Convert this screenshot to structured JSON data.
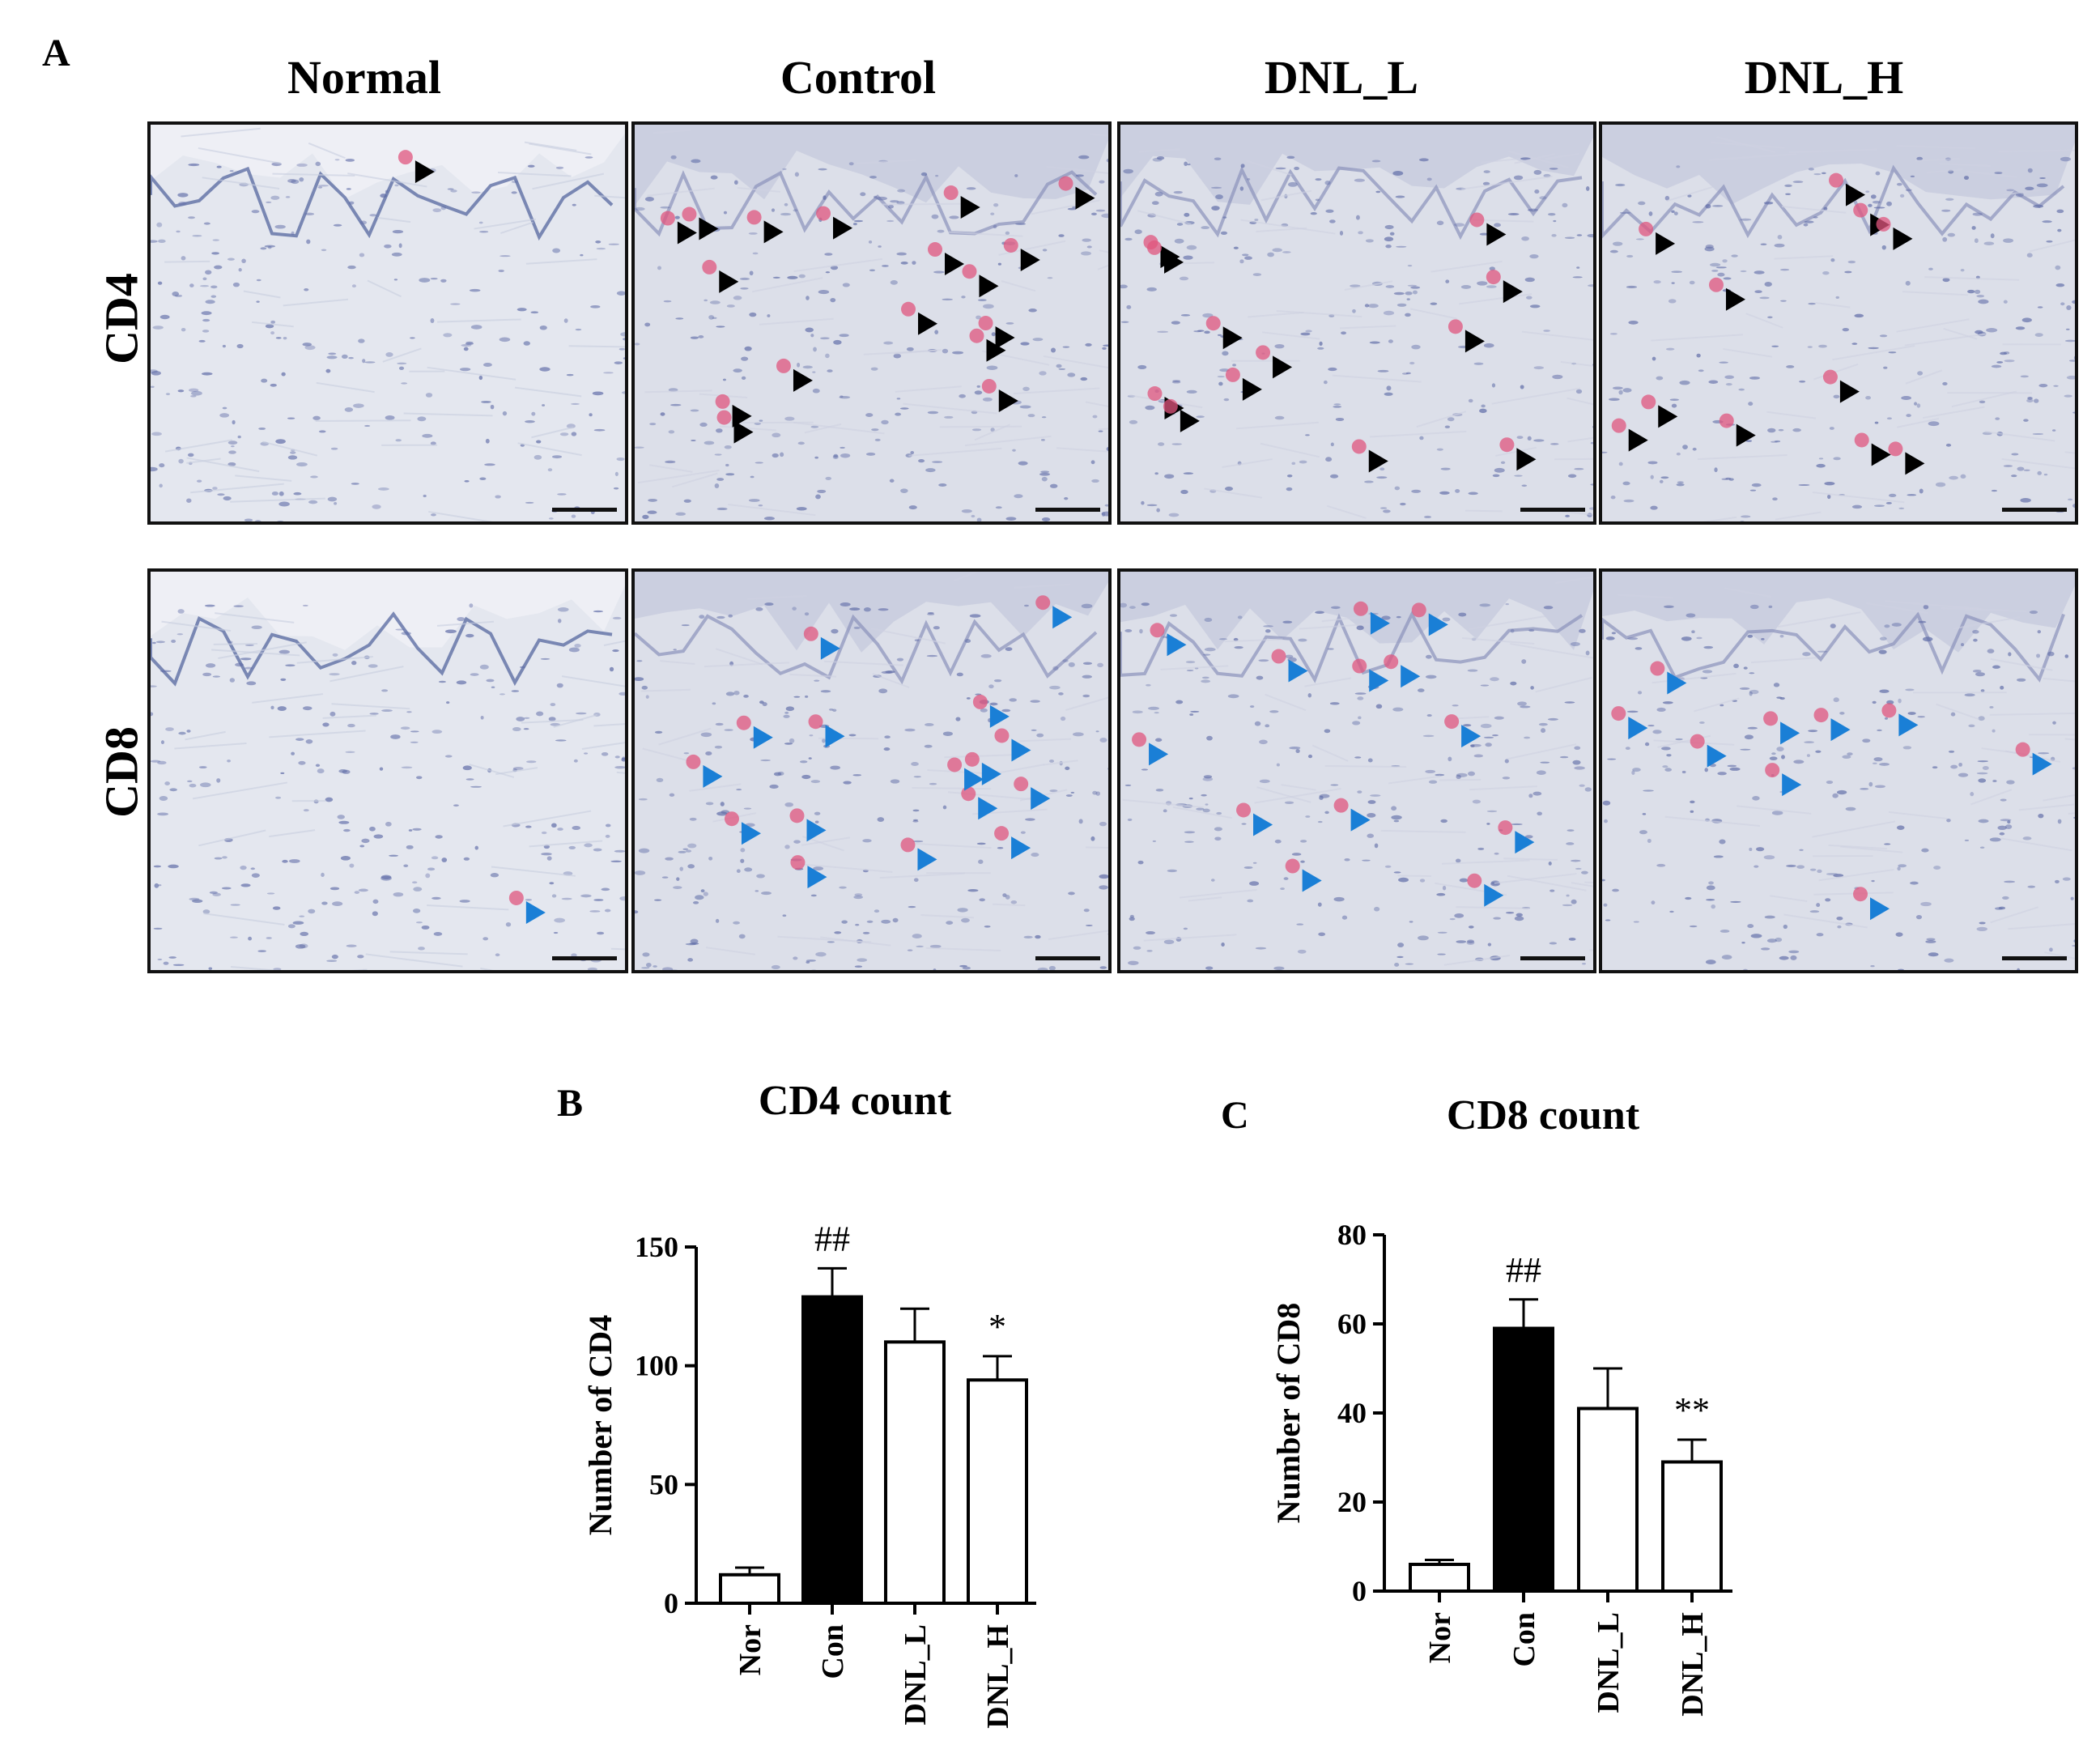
{
  "figure": {
    "panel_a_label": "A",
    "panel_b_label": "B",
    "panel_c_label": "C",
    "columns": [
      "Normal",
      "Control",
      "DNL_L",
      "DNL_H"
    ],
    "rows": [
      "CD4",
      "CD8"
    ]
  },
  "micrographs": [
    {
      "row": "CD4",
      "col": "Normal",
      "marker_color": "#000000",
      "marker_count": 1
    },
    {
      "row": "CD4",
      "col": "Control",
      "marker_color": "#000000",
      "marker_count": 17
    },
    {
      "row": "CD4",
      "col": "DNL_L",
      "marker_color": "#000000",
      "marker_count": 12
    },
    {
      "row": "CD4",
      "col": "DNL_H",
      "marker_color": "#000000",
      "marker_count": 11
    },
    {
      "row": "CD8",
      "col": "Normal",
      "marker_color": "#1a7fd6",
      "marker_count": 1
    },
    {
      "row": "CD8",
      "col": "Control",
      "marker_color": "#1a7fd6",
      "marker_count": 16
    },
    {
      "row": "CD8",
      "col": "DNL_L",
      "marker_color": "#1a7fd6",
      "marker_count": 13
    },
    {
      "row": "CD8",
      "col": "DNL_H",
      "marker_color": "#1a7fd6",
      "marker_count": 9
    }
  ],
  "chart_data": [
    {
      "type": "bar",
      "title": "CD4 count",
      "ylabel": "Number of CD4",
      "xlabel": "",
      "categories": [
        "Nor",
        "Con",
        "DNL_L",
        "DNL_H"
      ],
      "values": [
        12,
        129,
        110,
        94
      ],
      "errors": [
        3,
        12,
        14,
        10
      ],
      "bar_colors": [
        "#ffffff",
        "#000000",
        "#ffffff",
        "#ffffff"
      ],
      "annotations": [
        "",
        "##",
        "",
        "*"
      ],
      "ylim": [
        0,
        150
      ],
      "yticks": [
        0,
        50,
        100,
        150
      ],
      "grid": false
    },
    {
      "type": "bar",
      "title": "CD8 count",
      "ylabel": "Number of CD8",
      "xlabel": "",
      "categories": [
        "Nor",
        "Con",
        "DNL_L",
        "DNL_H"
      ],
      "values": [
        6,
        59,
        41,
        29
      ],
      "errors": [
        1,
        6.5,
        9,
        5
      ],
      "bar_colors": [
        "#ffffff",
        "#000000",
        "#ffffff",
        "#ffffff"
      ],
      "annotations": [
        "",
        "##",
        "",
        "**"
      ],
      "ylim": [
        0,
        80
      ],
      "yticks": [
        0,
        20,
        40,
        60,
        80
      ],
      "grid": false
    }
  ]
}
